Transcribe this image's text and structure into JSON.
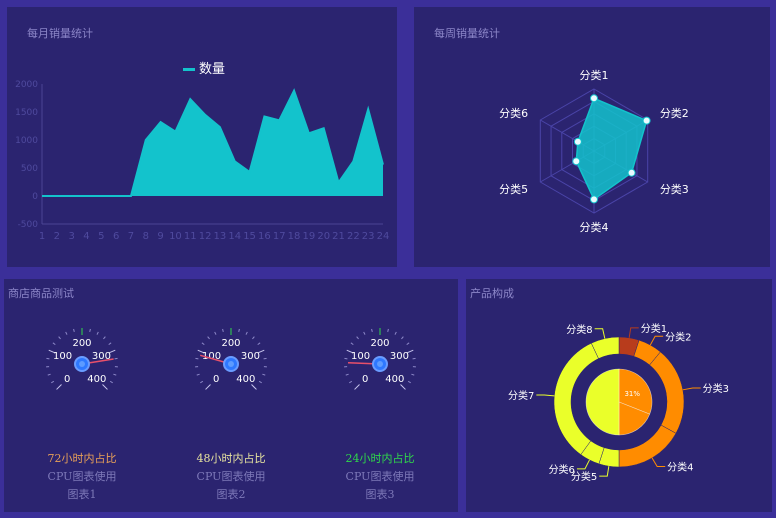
{
  "panels": {
    "monthly_title": "每月销量统计",
    "weekly_title": "每周销量统计",
    "gauges_title": "商店商品测试",
    "composition_title": "产品构成"
  },
  "chart_data": [
    {
      "type": "area",
      "title": "每月销量统计",
      "legend": [
        "数量"
      ],
      "legend_position": "top-center",
      "x": [
        "1",
        "2",
        "3",
        "4",
        "5",
        "6",
        "7",
        "8",
        "9",
        "10",
        "11",
        "12",
        "13",
        "14",
        "15",
        "16",
        "17",
        "18",
        "19",
        "20",
        "21",
        "22",
        "23",
        "24"
      ],
      "series": [
        {
          "name": "数量",
          "color": "#13c3cc",
          "values": [
            0,
            0,
            0,
            0,
            0,
            0,
            0,
            1000,
            1320,
            1150,
            1730,
            1450,
            1230,
            620,
            430,
            1420,
            1350,
            1880,
            1120,
            1210,
            240,
            620,
            1550,
            560
          ]
        }
      ],
      "yticks": [
        -500,
        0,
        500,
        1000,
        1500,
        2000
      ],
      "ylim": [
        -500,
        2000
      ],
      "grid": false
    },
    {
      "type": "radar",
      "title": "每周销量统计",
      "indicators": [
        "分类1",
        "分类2",
        "分类3",
        "分类4",
        "分类5",
        "分类6"
      ],
      "max": 100,
      "series": [
        {
          "values": [
            85,
            98,
            70,
            78,
            33,
            30
          ],
          "color": "#13c3cc"
        }
      ]
    },
    {
      "type": "gauge",
      "title": "商店商品测试",
      "gauges": [
        {
          "value": 320,
          "ticks": [
            "0",
            "100",
            "200",
            "300",
            "400"
          ],
          "label_1": "72小时内占比",
          "label_2": "CPU图表使用",
          "label_3": "图表1",
          "color": "#e8a058"
        },
        {
          "value": 90,
          "ticks": [
            "0",
            "100",
            "200",
            "300",
            "400"
          ],
          "label_1": "48小时内占比",
          "label_2": "CPU图表使用",
          "label_3": "图表2",
          "color": "#e8e4a0"
        },
        {
          "value": 70,
          "ticks": [
            "0",
            "100",
            "200",
            "300",
            "400"
          ],
          "label_1": "24小时内占比",
          "label_2": "CPU图表使用",
          "label_3": "图表3",
          "color": "#2fd84a"
        }
      ]
    },
    {
      "type": "pie",
      "title": "产品构成",
      "outer_ring": [
        {
          "label": "分类1",
          "value": 5,
          "color": "#b83c1c"
        },
        {
          "label": "分类2",
          "value": 6,
          "color": "#ff8c00"
        },
        {
          "label": "分类3",
          "value": 22,
          "color": "#ff8c00"
        },
        {
          "label": "分类4",
          "value": 17,
          "color": "#ff8c00"
        },
        {
          "label": "分类5",
          "value": 5,
          "color": "#eaff2a"
        },
        {
          "label": "分类6",
          "value": 5,
          "color": "#eaff2a"
        },
        {
          "label": "分类7",
          "value": 33,
          "color": "#eaff2a"
        },
        {
          "label": "分类8",
          "value": 7,
          "color": "#eaff2a"
        }
      ],
      "inner_pie": [
        {
          "value": 31,
          "label": "31%",
          "color": "#ff8c00"
        },
        {
          "value": 19,
          "color": "#ff8c00"
        },
        {
          "value": 50,
          "color": "#eaff2a"
        }
      ]
    }
  ]
}
